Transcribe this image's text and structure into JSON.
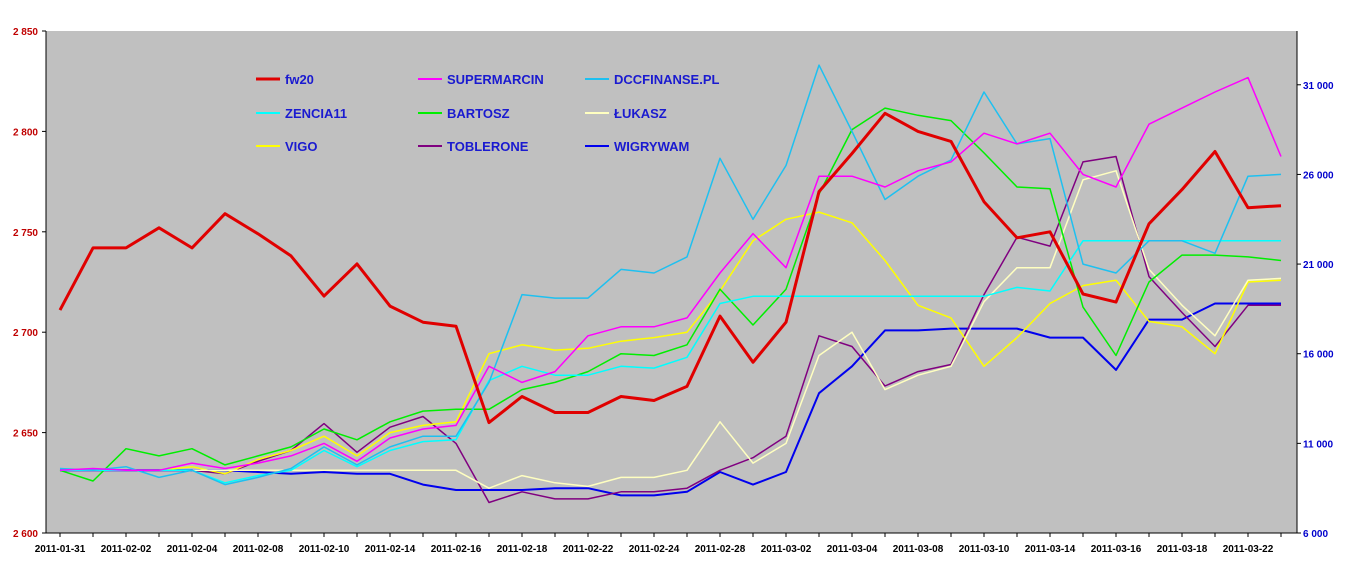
{
  "chart_data": {
    "type": "line",
    "categories": [
      "2011-01-31",
      "2011-02-01",
      "2011-02-02",
      "2011-02-03",
      "2011-02-04",
      "2011-02-07",
      "2011-02-08",
      "2011-02-09",
      "2011-02-10",
      "2011-02-11",
      "2011-02-14",
      "2011-02-15",
      "2011-02-16",
      "2011-02-17",
      "2011-02-18",
      "2011-02-21",
      "2011-02-22",
      "2011-02-23",
      "2011-02-24",
      "2011-02-25",
      "2011-02-28",
      "2011-03-01",
      "2011-03-02",
      "2011-03-03",
      "2011-03-04",
      "2011-03-07",
      "2011-03-08",
      "2011-03-09",
      "2011-03-10",
      "2011-03-11",
      "2011-03-14",
      "2011-03-15",
      "2011-03-16",
      "2011-03-17",
      "2011-03-18",
      "2011-03-21",
      "2011-03-22",
      "2011-03-23"
    ],
    "x_tick_labels": [
      "2011-01-31",
      "2011-02-02",
      "2011-02-04",
      "2011-02-08",
      "2011-02-10",
      "2011-02-14",
      "2011-02-16",
      "2011-02-18",
      "2011-02-22",
      "2011-02-24",
      "2011-02-28",
      "2011-03-02",
      "2011-03-04",
      "2011-03-08",
      "2011-03-10",
      "2011-03-14",
      "2011-03-16",
      "2011-03-18",
      "2011-03-22"
    ],
    "y_left": {
      "ylim": [
        2600,
        2850
      ],
      "ticks": [
        "2 600",
        "2 650",
        "2 700",
        "2 750",
        "2 800",
        "2 850"
      ],
      "color": "#c00000"
    },
    "y_right": {
      "ylim": [
        6000,
        34000
      ],
      "ticks": [
        "6 000",
        "11 000",
        "16 000",
        "21 000",
        "26 000",
        "31 000"
      ],
      "color": "#0000cc"
    },
    "background": "#c0c0c0",
    "grid": false,
    "legend_position": "top-left",
    "series": [
      {
        "name": "fw20",
        "axis": "left",
        "color": "#e00000",
        "width": 3,
        "values": [
          2711,
          2742,
          2742,
          2752,
          2742,
          2759,
          2749,
          2738,
          2718,
          2734,
          2713,
          2705,
          2703,
          2655,
          2668,
          2660,
          2660,
          2668,
          2666,
          2673,
          2708,
          2685,
          2705,
          2770,
          2789,
          2809,
          2800,
          2795,
          2765,
          2747,
          2750,
          2719,
          2715,
          2754,
          2771,
          2790,
          2762,
          2763
        ]
      },
      {
        "name": "SUPERMARCIN",
        "axis": "right",
        "color": "#ff00ff",
        "width": 1.5,
        "values": [
          9500,
          9600,
          9500,
          9500,
          9900,
          9600,
          9900,
          10300,
          11000,
          10000,
          11300,
          11800,
          12000,
          15300,
          14400,
          15000,
          17000,
          17500,
          17500,
          18000,
          20500,
          22700,
          20800,
          25900,
          25900,
          25300,
          26200,
          26700,
          28300,
          27700,
          28300,
          26000,
          25300,
          28800,
          29700,
          30600,
          31400,
          27000
        ]
      },
      {
        "name": "DCCFINANSE.PL",
        "axis": "right",
        "color": "#1ec0f0",
        "width": 1.5,
        "values": [
          9600,
          9500,
          9700,
          9100,
          9500,
          8700,
          9100,
          9600,
          10800,
          9800,
          10800,
          11400,
          11400,
          14400,
          19300,
          19100,
          19100,
          20700,
          20500,
          21400,
          26900,
          23500,
          26500,
          32100,
          28400,
          24600,
          25900,
          26800,
          30600,
          27700,
          28000,
          21000,
          20500,
          22300,
          22300,
          21600,
          25900,
          26000
        ]
      },
      {
        "name": "ZENCIA11",
        "axis": "right",
        "color": "#00ffff",
        "width": 1.5,
        "values": [
          9500,
          9500,
          9500,
          9500,
          9500,
          8800,
          9200,
          9500,
          10600,
          9700,
          10600,
          11100,
          11200,
          14500,
          15300,
          14800,
          14800,
          15300,
          15200,
          15800,
          18800,
          19200,
          19200,
          19200,
          19200,
          19200,
          19200,
          19200,
          19200,
          19700,
          19500,
          22300,
          22300,
          22300,
          22300,
          22300,
          22300,
          22300
        ]
      },
      {
        "name": "BARTOSZ",
        "axis": "right",
        "color": "#00ee00",
        "width": 1.5,
        "values": [
          9500,
          8900,
          10700,
          10300,
          10700,
          9800,
          10300,
          10800,
          11800,
          11200,
          12200,
          12800,
          12900,
          12900,
          14000,
          14400,
          15000,
          16000,
          15900,
          16500,
          19600,
          17600,
          19600,
          24900,
          28500,
          29700,
          29300,
          29000,
          27200,
          25300,
          25200,
          18600,
          15900,
          20000,
          21500,
          21500,
          21400,
          21200
        ]
      },
      {
        "name": "ŁUKASZ",
        "axis": "right",
        "color": "#ffffc0",
        "width": 1.5,
        "values": [
          9500,
          9500,
          9500,
          9500,
          9500,
          9500,
          9500,
          9500,
          9500,
          9500,
          9500,
          9500,
          9500,
          8500,
          9200,
          8800,
          8600,
          9100,
          9100,
          9500,
          12200,
          9900,
          11000,
          15900,
          17200,
          14000,
          14800,
          15300,
          18900,
          20800,
          20800,
          25700,
          26200,
          20700,
          18700,
          17000,
          20100,
          20200
        ]
      },
      {
        "name": "VIGO",
        "axis": "right",
        "color": "#ffff00",
        "width": 1.5,
        "values": [
          9500,
          9500,
          9500,
          9500,
          9700,
          9300,
          10100,
          10600,
          11400,
          10300,
          11600,
          12000,
          12200,
          16000,
          16500,
          16200,
          16300,
          16700,
          16900,
          17200,
          19500,
          22300,
          23500,
          23900,
          23300,
          21200,
          18700,
          18000,
          15300,
          16900,
          18800,
          19800,
          20100,
          17800,
          17500,
          16000,
          20000,
          20100
        ]
      },
      {
        "name": "TOBLERONE",
        "axis": "right",
        "color": "#800080",
        "width": 1.5,
        "values": [
          9500,
          9500,
          9500,
          9500,
          9500,
          9300,
          10000,
          10600,
          12100,
          10500,
          11900,
          12500,
          11000,
          7700,
          8300,
          7900,
          7900,
          8300,
          8300,
          8500,
          9500,
          10200,
          11400,
          17000,
          16400,
          14200,
          15000,
          15400,
          19300,
          22500,
          22000,
          26700,
          27000,
          20300,
          18300,
          16400,
          18700,
          18700
        ]
      },
      {
        "name": "WIGRYWAM",
        "axis": "right",
        "color": "#0000ee",
        "width": 2,
        "values": [
          9500,
          9500,
          9500,
          9500,
          9500,
          9500,
          9400,
          9300,
          9400,
          9300,
          9300,
          8700,
          8400,
          8400,
          8400,
          8500,
          8500,
          8100,
          8100,
          8300,
          9400,
          8700,
          9400,
          13800,
          15300,
          17300,
          17300,
          17400,
          17400,
          17400,
          16900,
          16900,
          15100,
          17900,
          17900,
          18800,
          18800,
          18800
        ]
      }
    ]
  }
}
